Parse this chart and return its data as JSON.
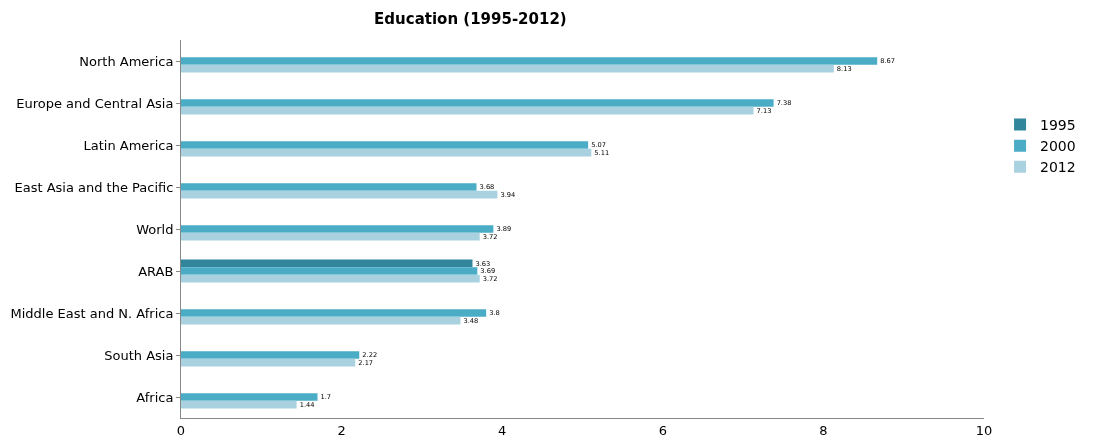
{
  "chart_data": {
    "type": "bar",
    "orientation": "horizontal",
    "title": "Education (1995-2012)",
    "categories": [
      "North America",
      "Europe and Central Asia",
      "Latin America",
      "East Asia and the Pacific",
      "World",
      "ARAB",
      "Middle East and N. Africa",
      "South Asia",
      "Africa"
    ],
    "series": [
      {
        "name": "1995",
        "color": "#31869b",
        "values": [
          null,
          null,
          null,
          null,
          null,
          3.63,
          null,
          null,
          null
        ]
      },
      {
        "name": "2000",
        "color": "#4bacc6",
        "values": [
          8.67,
          7.38,
          5.07,
          3.68,
          3.89,
          3.69,
          3.8,
          2.22,
          1.7
        ]
      },
      {
        "name": "2012",
        "color": "#a9d1e0",
        "values": [
          8.13,
          7.13,
          5.11,
          3.94,
          3.72,
          3.72,
          3.48,
          2.17,
          1.44
        ]
      }
    ],
    "xlim": [
      0,
      10
    ],
    "xticks": [
      0,
      2,
      4,
      6,
      8,
      10
    ],
    "grid": false,
    "legend": "right",
    "data_labels": true
  }
}
